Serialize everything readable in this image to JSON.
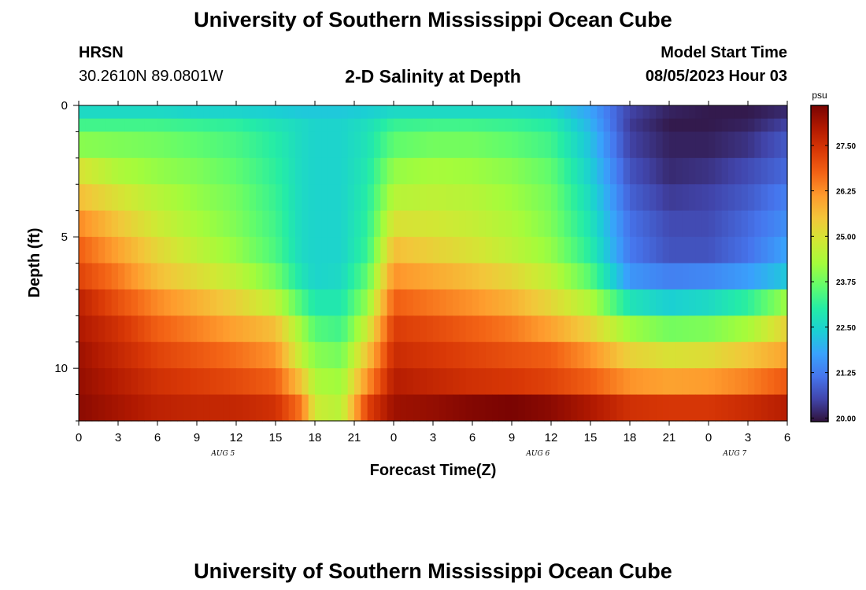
{
  "header": {
    "title": "University of Southern Mississippi Ocean Cube",
    "station": "HRSN",
    "coordinates": "30.2610N  89.0801W",
    "plot_title": "2-D Salinity at Depth",
    "model_start_label": "Model Start Time",
    "model_start_value": "08/05/2023 Hour 03"
  },
  "footer": {
    "title": "University of Southern Mississippi Ocean Cube"
  },
  "chart_data": {
    "type": "heatmap",
    "title": "2-D Salinity at Depth",
    "xlabel": "Forecast Time(Z)",
    "ylabel": "Depth (ft)",
    "x_tick_labels": [
      "0",
      "3",
      "6",
      "9",
      "12",
      "15",
      "18",
      "21",
      "0",
      "3",
      "6",
      "9",
      "12",
      "15",
      "18",
      "21",
      "0",
      "3",
      "6"
    ],
    "x_range_hours": [
      0,
      54
    ],
    "date_labels": [
      {
        "label": "AUG 5",
        "hour": 11
      },
      {
        "label": "AUG 6",
        "hour": 35
      },
      {
        "label": "AUG 7",
        "hour": 50
      }
    ],
    "y_tick_labels": [
      "0",
      "5",
      "10"
    ],
    "y_tick_values": [
      0,
      5,
      10
    ],
    "y_range_ft": [
      0,
      12
    ],
    "depth_layers_ft": [
      0.25,
      0.75,
      1.5,
      2.5,
      3.5,
      4.5,
      5.5,
      6.5,
      7.5,
      8.5,
      9.5,
      10.5,
      11.5
    ],
    "layer_bounds_ft": [
      0,
      0.5,
      1,
      2,
      3,
      4,
      5,
      6,
      7,
      8,
      9,
      10,
      11,
      12
    ],
    "time_hours": [
      0,
      3,
      6,
      9,
      12,
      15,
      17,
      18,
      20,
      22,
      24,
      27,
      30,
      33,
      36,
      39,
      42,
      45,
      48,
      51,
      54
    ],
    "salinity_psu": [
      [
        22.6,
        22.6,
        22.6,
        22.5,
        22.5,
        22.4,
        22.3,
        22.3,
        22.3,
        22.4,
        22.6,
        22.6,
        22.6,
        22.6,
        22.5,
        21.8,
        20.5,
        20.1,
        20.0,
        20.0,
        20.2
      ],
      [
        23.3,
        23.3,
        23.3,
        23.2,
        23.1,
        22.8,
        22.6,
        22.5,
        22.5,
        22.7,
        23.2,
        23.3,
        23.3,
        23.2,
        23.0,
        22.0,
        20.4,
        20.0,
        20.0,
        20.1,
        20.5
      ],
      [
        24.0,
        23.9,
        23.8,
        23.6,
        23.4,
        23.0,
        22.6,
        22.5,
        22.5,
        22.8,
        23.6,
        23.8,
        23.8,
        23.6,
        23.3,
        22.2,
        20.5,
        20.1,
        20.1,
        20.3,
        20.8
      ],
      [
        25.0,
        24.4,
        24.1,
        23.9,
        23.6,
        23.1,
        22.6,
        22.5,
        22.5,
        22.9,
        24.1,
        24.3,
        24.2,
        24.0,
        23.6,
        22.4,
        20.7,
        20.2,
        20.3,
        20.6,
        21.0
      ],
      [
        25.6,
        25.0,
        24.5,
        24.1,
        23.8,
        23.2,
        22.6,
        22.5,
        22.5,
        23.0,
        24.5,
        24.6,
        24.5,
        24.2,
        23.8,
        22.6,
        20.9,
        20.4,
        20.5,
        20.8,
        21.3
      ],
      [
        26.3,
        25.5,
        24.8,
        24.3,
        23.9,
        23.3,
        22.6,
        22.5,
        22.5,
        23.1,
        25.0,
        24.9,
        24.7,
        24.4,
        23.9,
        22.8,
        21.1,
        20.6,
        20.6,
        21.0,
        21.5
      ],
      [
        26.8,
        26.0,
        25.2,
        24.6,
        24.1,
        23.4,
        22.6,
        22.5,
        22.5,
        23.2,
        25.6,
        25.3,
        25.0,
        24.6,
        24.1,
        23.0,
        21.2,
        20.7,
        20.7,
        21.1,
        21.8
      ],
      [
        27.2,
        26.5,
        25.6,
        25.1,
        24.6,
        23.8,
        22.8,
        22.5,
        22.6,
        23.6,
        26.2,
        25.9,
        25.6,
        25.2,
        24.6,
        23.5,
        21.6,
        21.3,
        21.4,
        21.7,
        22.3
      ],
      [
        27.8,
        27.0,
        26.3,
        25.8,
        25.3,
        24.6,
        23.4,
        22.9,
        22.9,
        24.1,
        26.8,
        26.5,
        26.2,
        25.8,
        25.2,
        24.4,
        22.8,
        22.4,
        22.6,
        23.1,
        24.2
      ],
      [
        28.0,
        27.5,
        26.8,
        26.4,
        26.0,
        25.6,
        24.2,
        23.5,
        23.3,
        24.8,
        27.3,
        27.1,
        26.8,
        26.5,
        26.0,
        25.3,
        24.2,
        23.8,
        23.9,
        24.3,
        25.3
      ],
      [
        28.2,
        27.7,
        27.2,
        26.9,
        26.6,
        26.2,
        24.6,
        24.0,
        23.8,
        25.5,
        27.6,
        27.4,
        27.2,
        27.0,
        26.8,
        26.2,
        25.3,
        25.0,
        25.1,
        25.5,
        26.0
      ],
      [
        28.3,
        27.9,
        27.5,
        27.3,
        27.1,
        26.8,
        25.5,
        24.4,
        24.2,
        26.2,
        27.9,
        27.7,
        27.5,
        27.4,
        27.2,
        26.8,
        26.2,
        26.0,
        26.1,
        26.4,
        26.9
      ],
      [
        28.4,
        28.1,
        27.8,
        27.7,
        27.7,
        27.5,
        26.5,
        24.8,
        24.5,
        27.2,
        28.2,
        28.3,
        28.5,
        28.6,
        28.4,
        28.0,
        27.5,
        27.4,
        27.4,
        27.6,
        27.9
      ]
    ],
    "colorbar": {
      "unit": "psu",
      "range": [
        19.9,
        28.6
      ],
      "tick_labels": [
        "20.00",
        "21.25",
        "22.50",
        "23.75",
        "25.00",
        "26.25",
        "27.50"
      ],
      "tick_values": [
        20.0,
        21.25,
        22.5,
        23.75,
        25.0,
        26.25,
        27.5
      ]
    }
  },
  "colors": {
    "background": "#ffffff",
    "text": "#000000",
    "colormap": [
      "#30123b",
      "#4145ab",
      "#4675ed",
      "#39a2fc",
      "#1bcfd4",
      "#24eca6",
      "#61fc6c",
      "#a4fc3b",
      "#d1e834",
      "#f3c63a",
      "#fe9b2d",
      "#f36315",
      "#d93806",
      "#b11901",
      "#7a0402"
    ]
  }
}
